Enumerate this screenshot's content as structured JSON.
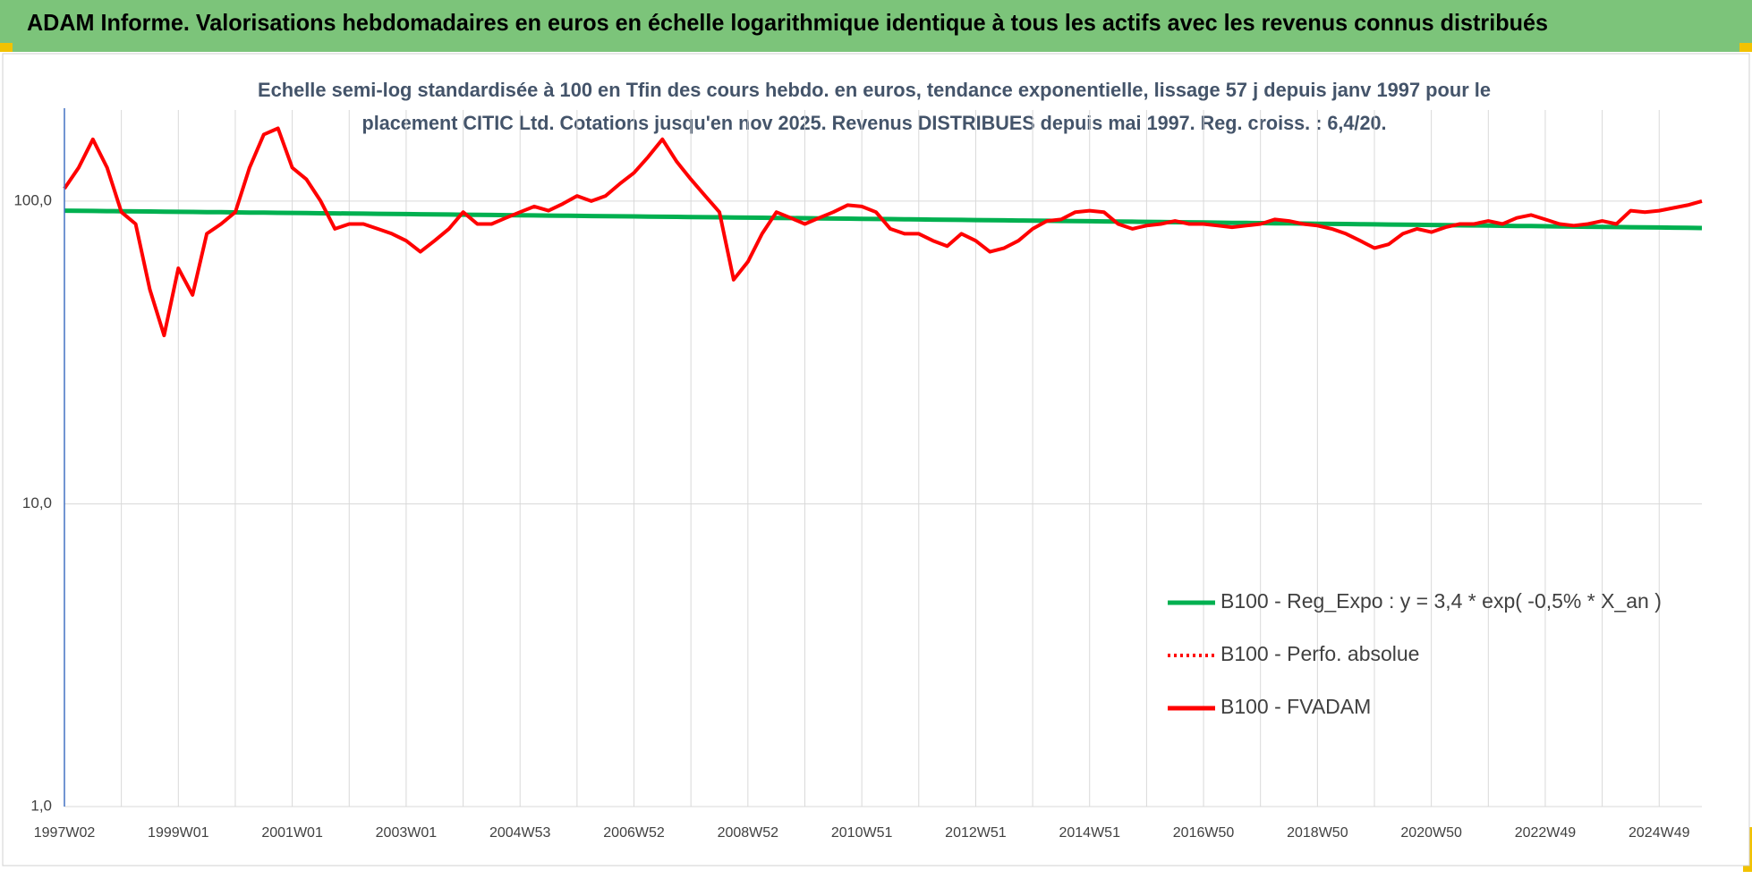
{
  "header": {
    "title": "ADAM Informe. Valorisations hebdomadaires en euros en échelle logarithmique identique à tous les actifs avec les revenus connus distribués"
  },
  "chart_data": {
    "type": "line",
    "subtitle": [
      "Echelle semi-log standardisée à 100 en Tfin des cours hebdo. en euros, tendance exponentielle, lissage 57 j depuis janv 1997 pour le",
      "placement CITIC Ltd. Cotations jusqu'en nov 2025. Revenus DISTRIBUES depuis mai 1997. Reg. croiss. : 6,4/20."
    ],
    "categories": [
      "1997W02",
      null,
      null,
      null,
      null,
      null,
      null,
      null,
      "1999W01",
      null,
      null,
      null,
      null,
      null,
      null,
      null,
      "2001W01",
      null,
      null,
      null,
      null,
      null,
      null,
      null,
      "2003W01",
      null,
      null,
      null,
      null,
      null,
      null,
      null,
      "2004W53",
      null,
      null,
      null,
      null,
      null,
      null,
      null,
      "2006W52",
      null,
      null,
      null,
      null,
      null,
      null,
      null,
      "2008W52",
      null,
      null,
      null,
      null,
      null,
      null,
      null,
      "2010W51",
      null,
      null,
      null,
      null,
      null,
      null,
      null,
      "2012W51",
      null,
      null,
      null,
      null,
      null,
      null,
      null,
      "2014W51",
      null,
      null,
      null,
      null,
      null,
      null,
      null,
      "2016W50",
      null,
      null,
      null,
      null,
      null,
      null,
      null,
      "2018W50",
      null,
      null,
      null,
      null,
      null,
      null,
      null,
      "2020W50",
      null,
      null,
      null,
      null,
      null,
      null,
      null,
      "2022W49",
      null,
      null,
      null,
      null,
      null,
      null,
      null,
      "2024W49",
      null,
      null,
      null
    ],
    "series": [
      {
        "name": "B100 - Reg_Expo : y = 3,4 * exp( -0,5% *  X_an )",
        "color": "#00b050",
        "style": "solid",
        "values": [
          93.0,
          92.9,
          92.8,
          92.7,
          92.6,
          92.5,
          92.4,
          92.3,
          92.2,
          92.1,
          92.0,
          91.9,
          91.8,
          91.7,
          91.6,
          91.5,
          91.4,
          91.3,
          91.2,
          91.1,
          91.0,
          90.9,
          90.8,
          90.7,
          90.6,
          90.5,
          90.4,
          90.3,
          90.2,
          90.1,
          90.0,
          89.9,
          89.8,
          89.7,
          89.6,
          89.5,
          89.4,
          89.3,
          89.2,
          89.1,
          89.0,
          88.9,
          88.8,
          88.7,
          88.6,
          88.5,
          88.4,
          88.3,
          88.2,
          88.1,
          88.0,
          87.9,
          87.8,
          87.7,
          87.6,
          87.5,
          87.4,
          87.3,
          87.2,
          87.1,
          87.0,
          86.9,
          86.8,
          86.7,
          86.6,
          86.5,
          86.4,
          86.3,
          86.2,
          86.1,
          86.0,
          85.9,
          85.8,
          85.7,
          85.6,
          85.5,
          85.4,
          85.3,
          85.2,
          85.1,
          85.0,
          84.9,
          84.8,
          84.7,
          84.6,
          84.5,
          84.4,
          84.3,
          84.2,
          84.1,
          84.0,
          83.9,
          83.8,
          83.7,
          83.6,
          83.5,
          83.4,
          83.3,
          83.2,
          83.1,
          83.0,
          82.9,
          82.8,
          82.7,
          82.6,
          82.5,
          82.4,
          82.3,
          82.2,
          82.1,
          82.0,
          81.9,
          81.8,
          81.7,
          81.6,
          81.5
        ]
      },
      {
        "name": "B100 - Perfo. absolue",
        "color": "#ff0000",
        "style": "dotted",
        "values": [
          110,
          129,
          160,
          129,
          92,
          84,
          51,
          36,
          60,
          49,
          78,
          84,
          92,
          129,
          166,
          174,
          129,
          118,
          100,
          81,
          84,
          84,
          81,
          78,
          74,
          68,
          74,
          81,
          92,
          84,
          84,
          88,
          92,
          96,
          93,
          98,
          104,
          100,
          104,
          114,
          124,
          140,
          160,
          135,
          118,
          104,
          92,
          55,
          63,
          78,
          92,
          88,
          84,
          88,
          92,
          97,
          96,
          92,
          81,
          78,
          78,
          74,
          71,
          78,
          74,
          68,
          70,
          74,
          81,
          86,
          87,
          92,
          93,
          92,
          84,
          81,
          83,
          84,
          86,
          84,
          84,
          83,
          82,
          83,
          84,
          87,
          86,
          84,
          83,
          81,
          78,
          74,
          70,
          72,
          78,
          81,
          79,
          82,
          84,
          84,
          86,
          84,
          88,
          90,
          87,
          84,
          83,
          84,
          86,
          84,
          93,
          92,
          93,
          95,
          97,
          100
        ]
      },
      {
        "name": "B100 - FVADAM",
        "color": "#ff0000",
        "style": "solid",
        "values": [
          110,
          129,
          160,
          129,
          92,
          84,
          51,
          36,
          60,
          49,
          78,
          84,
          92,
          129,
          166,
          174,
          129,
          118,
          100,
          81,
          84,
          84,
          81,
          78,
          74,
          68,
          74,
          81,
          92,
          84,
          84,
          88,
          92,
          96,
          93,
          98,
          104,
          100,
          104,
          114,
          124,
          140,
          160,
          135,
          118,
          104,
          92,
          55,
          63,
          78,
          92,
          88,
          84,
          88,
          92,
          97,
          96,
          92,
          81,
          78,
          78,
          74,
          71,
          78,
          74,
          68,
          70,
          74,
          81,
          86,
          87,
          92,
          93,
          92,
          84,
          81,
          83,
          84,
          86,
          84,
          84,
          83,
          82,
          83,
          84,
          87,
          86,
          84,
          83,
          81,
          78,
          74,
          70,
          72,
          78,
          81,
          79,
          82,
          84,
          84,
          86,
          84,
          88,
          90,
          87,
          84,
          83,
          84,
          86,
          84,
          93,
          92,
          93,
          95,
          97,
          100
        ]
      }
    ],
    "ylog": true,
    "ylim": [
      1,
      200
    ],
    "yticks": [
      {
        "value": 1,
        "label": "1,0"
      },
      {
        "value": 10,
        "label": "10,0"
      },
      {
        "value": 100,
        "label": "100,0"
      }
    ],
    "grid": true,
    "legend_position": "right"
  }
}
